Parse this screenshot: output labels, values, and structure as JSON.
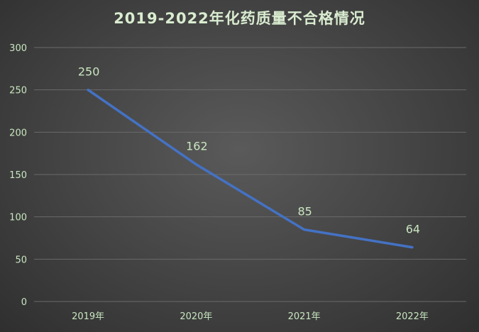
{
  "chart_data": {
    "type": "line",
    "title": "2019-2022年化药质量不合格情况",
    "categories": [
      "2019年",
      "2020年",
      "2021年",
      "2022年"
    ],
    "values": [
      250,
      162,
      85,
      64
    ],
    "ylim": [
      0,
      300
    ],
    "yticks": [
      0,
      50,
      100,
      150,
      200,
      250,
      300
    ],
    "grid": true,
    "legend": "none",
    "colors": {
      "line": "#4472c4",
      "text": "#c9e6c0",
      "grid": "#6a6a6a"
    }
  }
}
